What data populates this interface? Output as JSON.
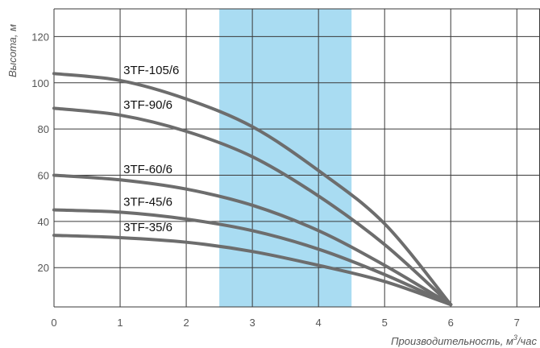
{
  "chart_data": {
    "type": "line",
    "xlabel": "Производительность, м³/час",
    "ylabel": "Высота, м",
    "xlim": [
      0,
      7.35
    ],
    "ylim": [
      3,
      132
    ],
    "x_ticks": [
      0,
      1,
      2,
      3,
      4,
      5,
      6,
      7
    ],
    "y_ticks": [
      20,
      40,
      60,
      80,
      100,
      120
    ],
    "grid": true,
    "highlight_x_range": [
      2.5,
      4.5
    ],
    "colors": {
      "highlight": "#a9dcf2",
      "curve": "#6d6d6d",
      "grid": "#3a3a3a"
    },
    "series": [
      {
        "name": "3TF-105/6",
        "x": [
          0,
          1,
          2,
          3,
          4,
          5,
          6
        ],
        "y": [
          104,
          101,
          93,
          81,
          62,
          39,
          4
        ]
      },
      {
        "name": "3TF-90/6",
        "x": [
          0,
          1,
          2,
          3,
          4,
          5,
          6
        ],
        "y": [
          89,
          86,
          79,
          68,
          51,
          30,
          4
        ]
      },
      {
        "name": "3TF-60/6",
        "x": [
          0,
          1,
          2,
          3,
          4,
          5,
          6
        ],
        "y": [
          60,
          58,
          54,
          47,
          36,
          21,
          4
        ]
      },
      {
        "name": "3TF-45/6",
        "x": [
          0,
          1,
          2,
          3,
          4,
          5,
          6
        ],
        "y": [
          45,
          44,
          41,
          36,
          28,
          17,
          4
        ]
      },
      {
        "name": "3TF-35/6",
        "x": [
          0,
          1,
          2,
          3,
          4,
          5,
          6
        ],
        "y": [
          34,
          33,
          31,
          27,
          21,
          14,
          4
        ]
      }
    ]
  }
}
